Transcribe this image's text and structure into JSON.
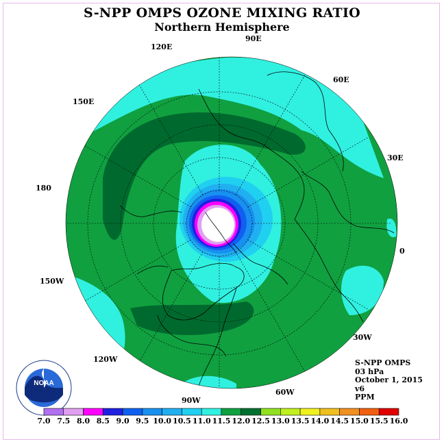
{
  "title": "S-NPP OMPS OZONE MIXING RATIO",
  "subtitle": "Northern Hemisphere",
  "longitude_labels": [
    {
      "text": "90E",
      "lon": 90
    },
    {
      "text": "60E",
      "lon": 60
    },
    {
      "text": "30E",
      "lon": 30
    },
    {
      "text": "0",
      "lon": 0
    },
    {
      "text": "30W",
      "lon": -30
    },
    {
      "text": "60W",
      "lon": -60
    },
    {
      "text": "90W",
      "lon": -90
    },
    {
      "text": "120W",
      "lon": -120
    },
    {
      "text": "150W",
      "lon": -150
    },
    {
      "text": "180",
      "lon": 180
    },
    {
      "text": "150E",
      "lon": 150
    },
    {
      "text": "120E",
      "lon": 120
    }
  ],
  "info": {
    "instrument": "S-NPP OMPS",
    "level": "03 hPa",
    "date": "October 1, 2015",
    "version": "v6",
    "units": "PPM"
  },
  "colorbar": {
    "ticks": [
      "7.0",
      "7.5",
      "8.0",
      "8.5",
      "9.0",
      "9.5",
      "10.0",
      "10.5",
      "11.0",
      "11.5",
      "12.0",
      "12.5",
      "13.0",
      "13.5",
      "14.0",
      "14.5",
      "15.0",
      "15.5",
      "16.0"
    ],
    "colors": [
      "#b070f0",
      "#e0a0f0",
      "#ff00ff",
      "#2020e0",
      "#1060f0",
      "#1890f0",
      "#20b0f0",
      "#20d0f0",
      "#30f0e0",
      "#10a040",
      "#007030",
      "#90e020",
      "#c0f020",
      "#f0f020",
      "#f0c020",
      "#f09020",
      "#f06010",
      "#e00000",
      "#905030"
    ]
  },
  "colors": {
    "map_background": "#0e8a44",
    "coastline": "#000000",
    "frame_border": "#e8b8e8"
  },
  "logo": {
    "text": "NOAA",
    "name": "noaa-logo"
  }
}
